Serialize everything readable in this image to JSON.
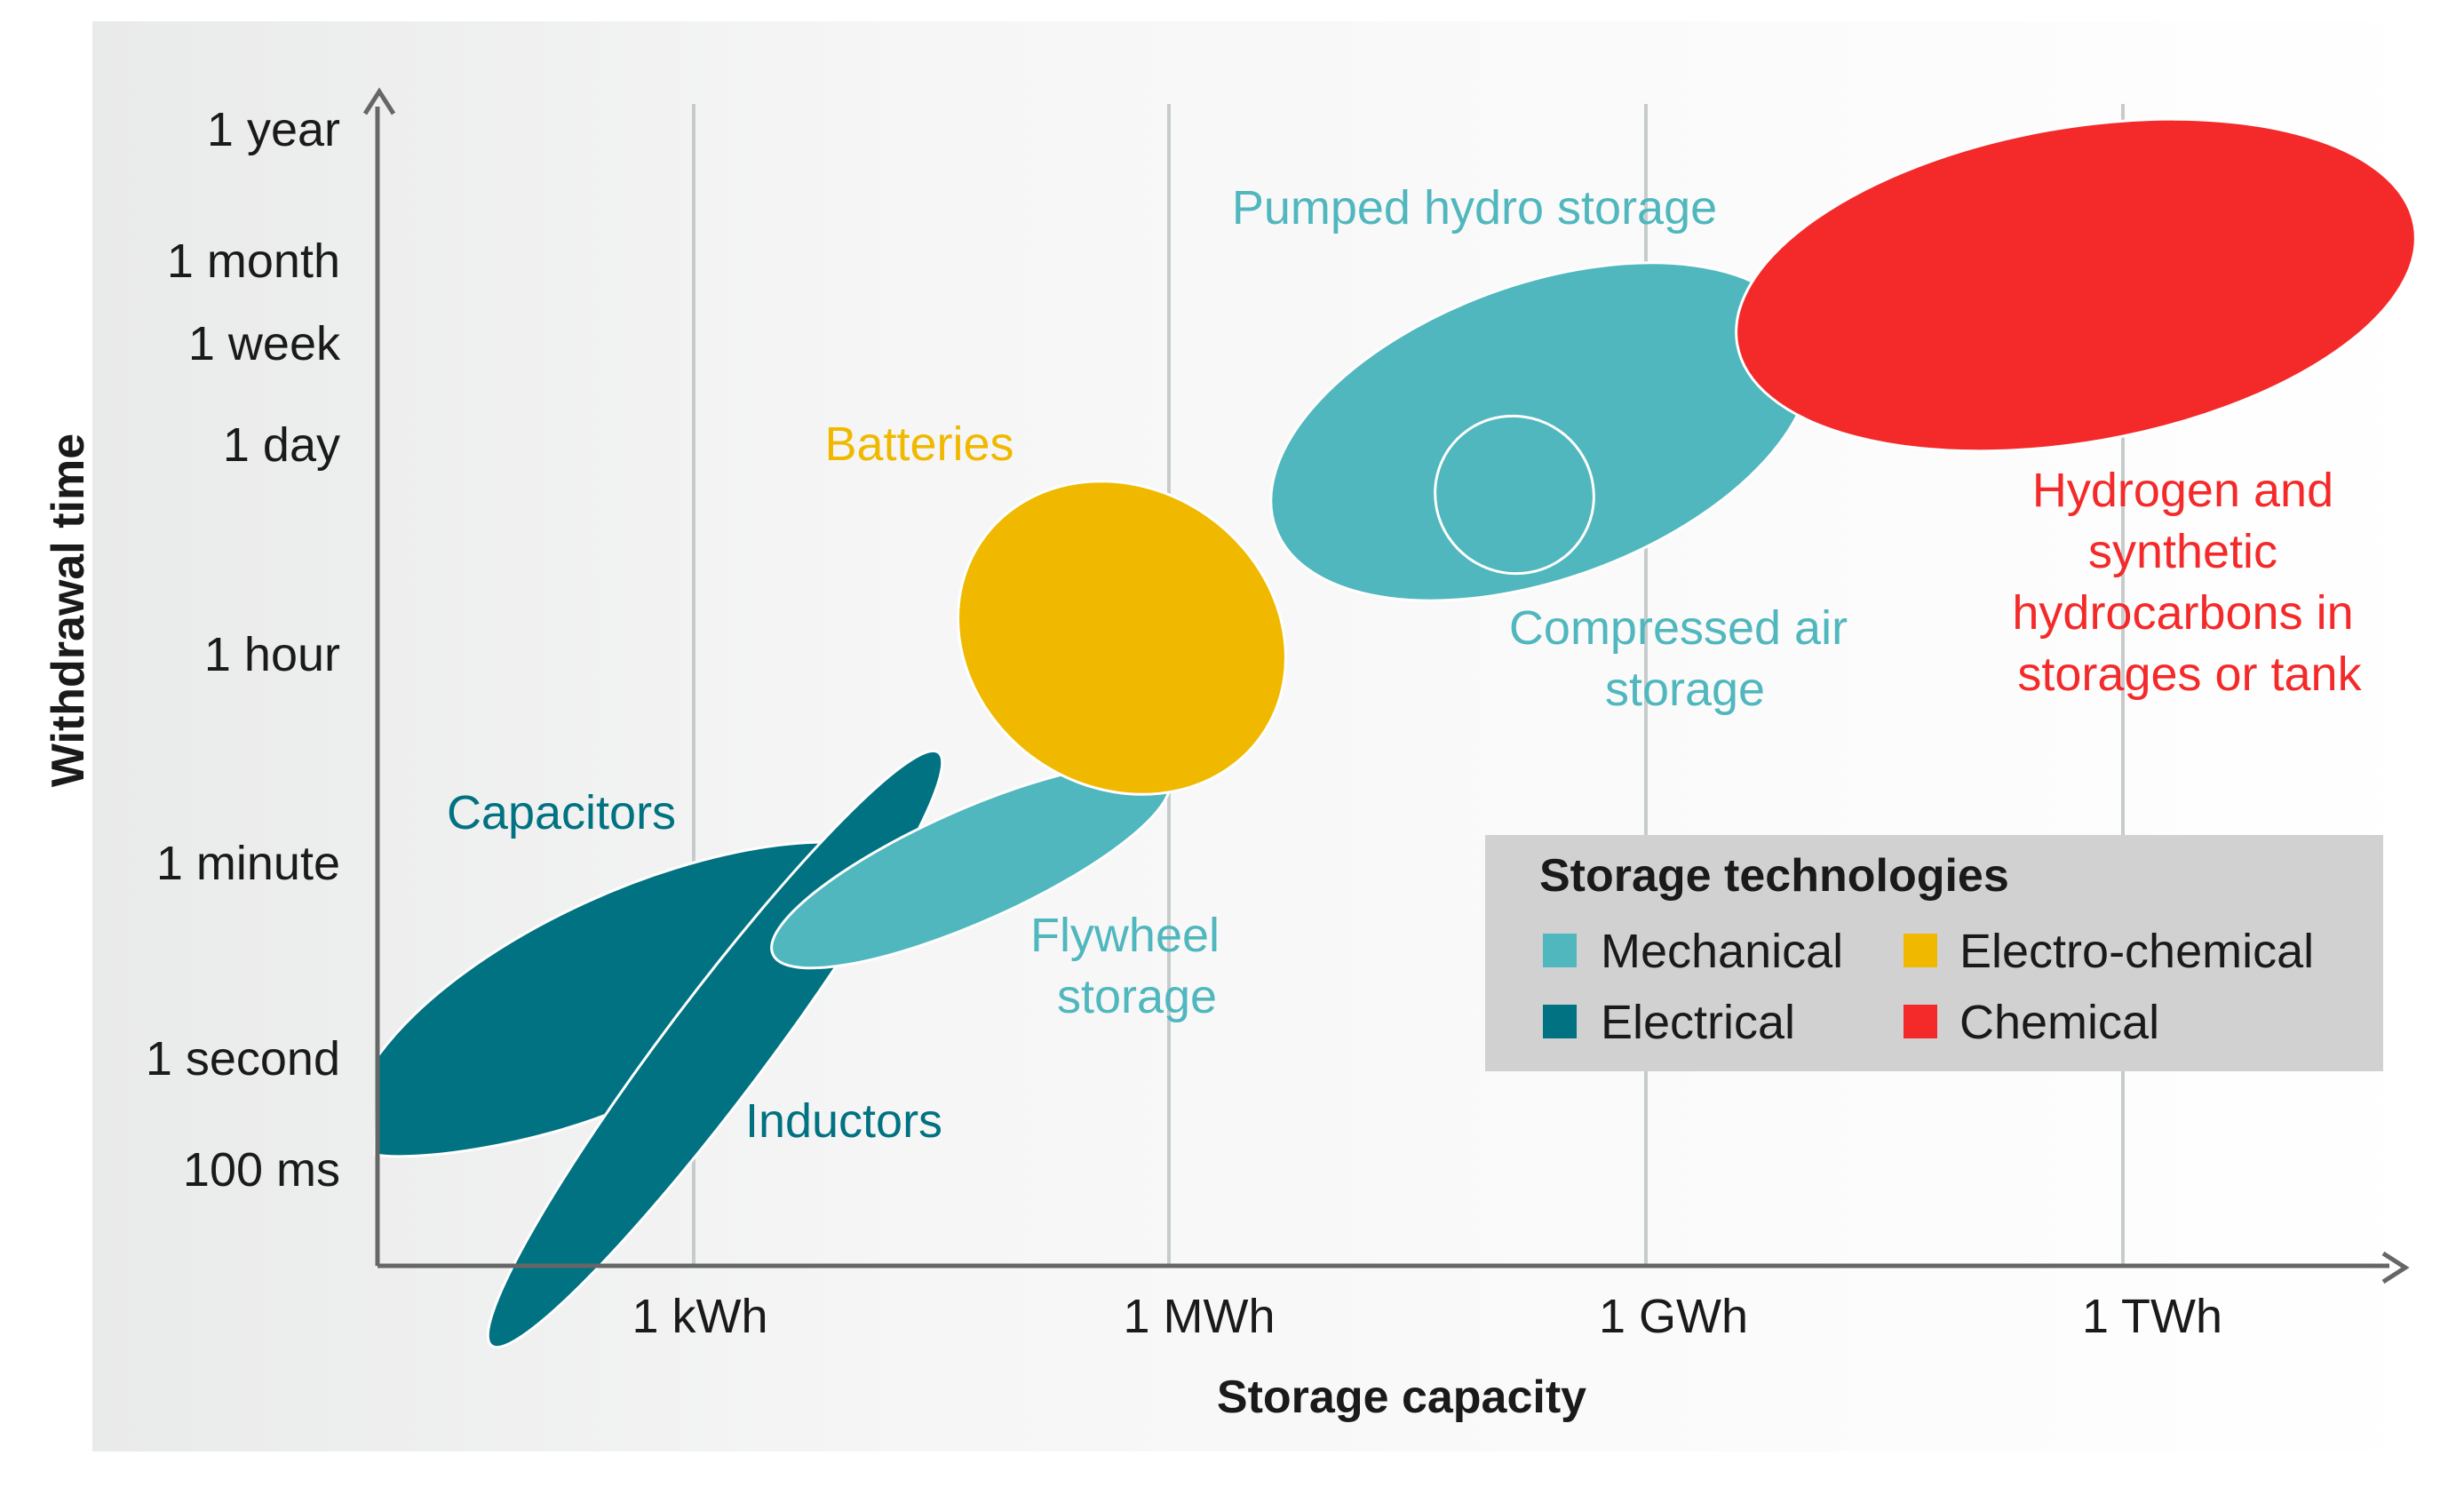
{
  "chart_data": {
    "type": "scatter",
    "title": "",
    "xlabel": "Storage capacity",
    "ylabel": "Withdrawal time",
    "x_ticks": [
      "1 kWh",
      "1 MWh",
      "1 GWh",
      "1 TWh"
    ],
    "x_scale": "log",
    "y_scale": "log",
    "y_ticks": [
      "100 ms",
      "1 second",
      "1 minute",
      "1 hour",
      "1 day",
      "1 week",
      "1 month",
      "1 year"
    ],
    "grid": "vertical lines at x ticks",
    "regions": [
      {
        "name": "Capacitors",
        "category": "Electrical",
        "capacity_range": [
          "below 1 kWh",
          "~10 kWh"
        ],
        "time_range": [
          "~100 ms",
          "~1 minute"
        ]
      },
      {
        "name": "Inductors",
        "category": "Electrical",
        "capacity_range": [
          "~30 Wh",
          "~10 kWh"
        ],
        "time_range": [
          "below 100 ms",
          "~1 minute"
        ]
      },
      {
        "name": "Flywheel storage",
        "category": "Mechanical",
        "capacity_range": [
          "~3 kWh",
          "~1 MWh"
        ],
        "time_range": [
          "~10 seconds",
          "~15 minutes"
        ]
      },
      {
        "name": "Batteries",
        "category": "Electro-chemical",
        "capacity_range": [
          "~100 kWh",
          "~3 MWh"
        ],
        "time_range": [
          "~2 minutes",
          "~1 day"
        ]
      },
      {
        "name": "Pumped hydro storage",
        "category": "Mechanical",
        "capacity_range": [
          "~10 MWh",
          "~100 GWh"
        ],
        "time_range": [
          "~3 hours",
          "~1 month"
        ]
      },
      {
        "name": "Compressed air storage",
        "category": "Mechanical",
        "capacity_range": [
          "~300 MWh",
          "~2 GWh"
        ],
        "time_range": [
          "~3 hours",
          "~1 day"
        ]
      },
      {
        "name": "Hydrogen and synthetic hydrocarbons in storages or tank",
        "category": "Chemical",
        "capacity_range": [
          "~100 GWh",
          "~1000 TWh"
        ],
        "time_range": [
          "~1 day",
          "~1 year"
        ]
      }
    ],
    "region_labels": [
      {
        "key": "capacitors",
        "lines": [
          "Capacitors"
        ]
      },
      {
        "key": "inductors",
        "lines": [
          "Inductors"
        ]
      },
      {
        "key": "flywheel",
        "lines": [
          "Flywheel",
          "storage"
        ]
      },
      {
        "key": "batteries",
        "lines": [
          "Batteries"
        ]
      },
      {
        "key": "pumped_hydro",
        "lines": [
          "Pumped hydro storage"
        ]
      },
      {
        "key": "compressed_air",
        "lines": [
          "Compressed air",
          "storage"
        ]
      },
      {
        "key": "hydrogen",
        "lines": [
          "Hydrogen and",
          "synthetic",
          "hydrocarbons in",
          "storages or tank"
        ]
      }
    ],
    "legend": {
      "title": "Storage technologies",
      "placement": "lower-right",
      "items": [
        {
          "label": "Mechanical",
          "color": "#4fb7bd"
        },
        {
          "label": "Electro-chemical",
          "color": "#f0b900"
        },
        {
          "label": "Electrical",
          "color": "#007281"
        },
        {
          "label": "Chemical",
          "color": "#f42a2a"
        }
      ]
    },
    "colors": {
      "mechanical": "#4fb7bd",
      "electrochemical": "#f0b900",
      "electrical": "#007281",
      "chemical": "#f42a2a",
      "grid": "#c6cccb",
      "axis": "#666666",
      "legend_bg": "#d1d1d1",
      "label_mechanical": "#4fb7bd",
      "label_electrochemical": "#f0b900",
      "label_electrical": "#007281",
      "label_chemical": "#f42a2a"
    }
  }
}
